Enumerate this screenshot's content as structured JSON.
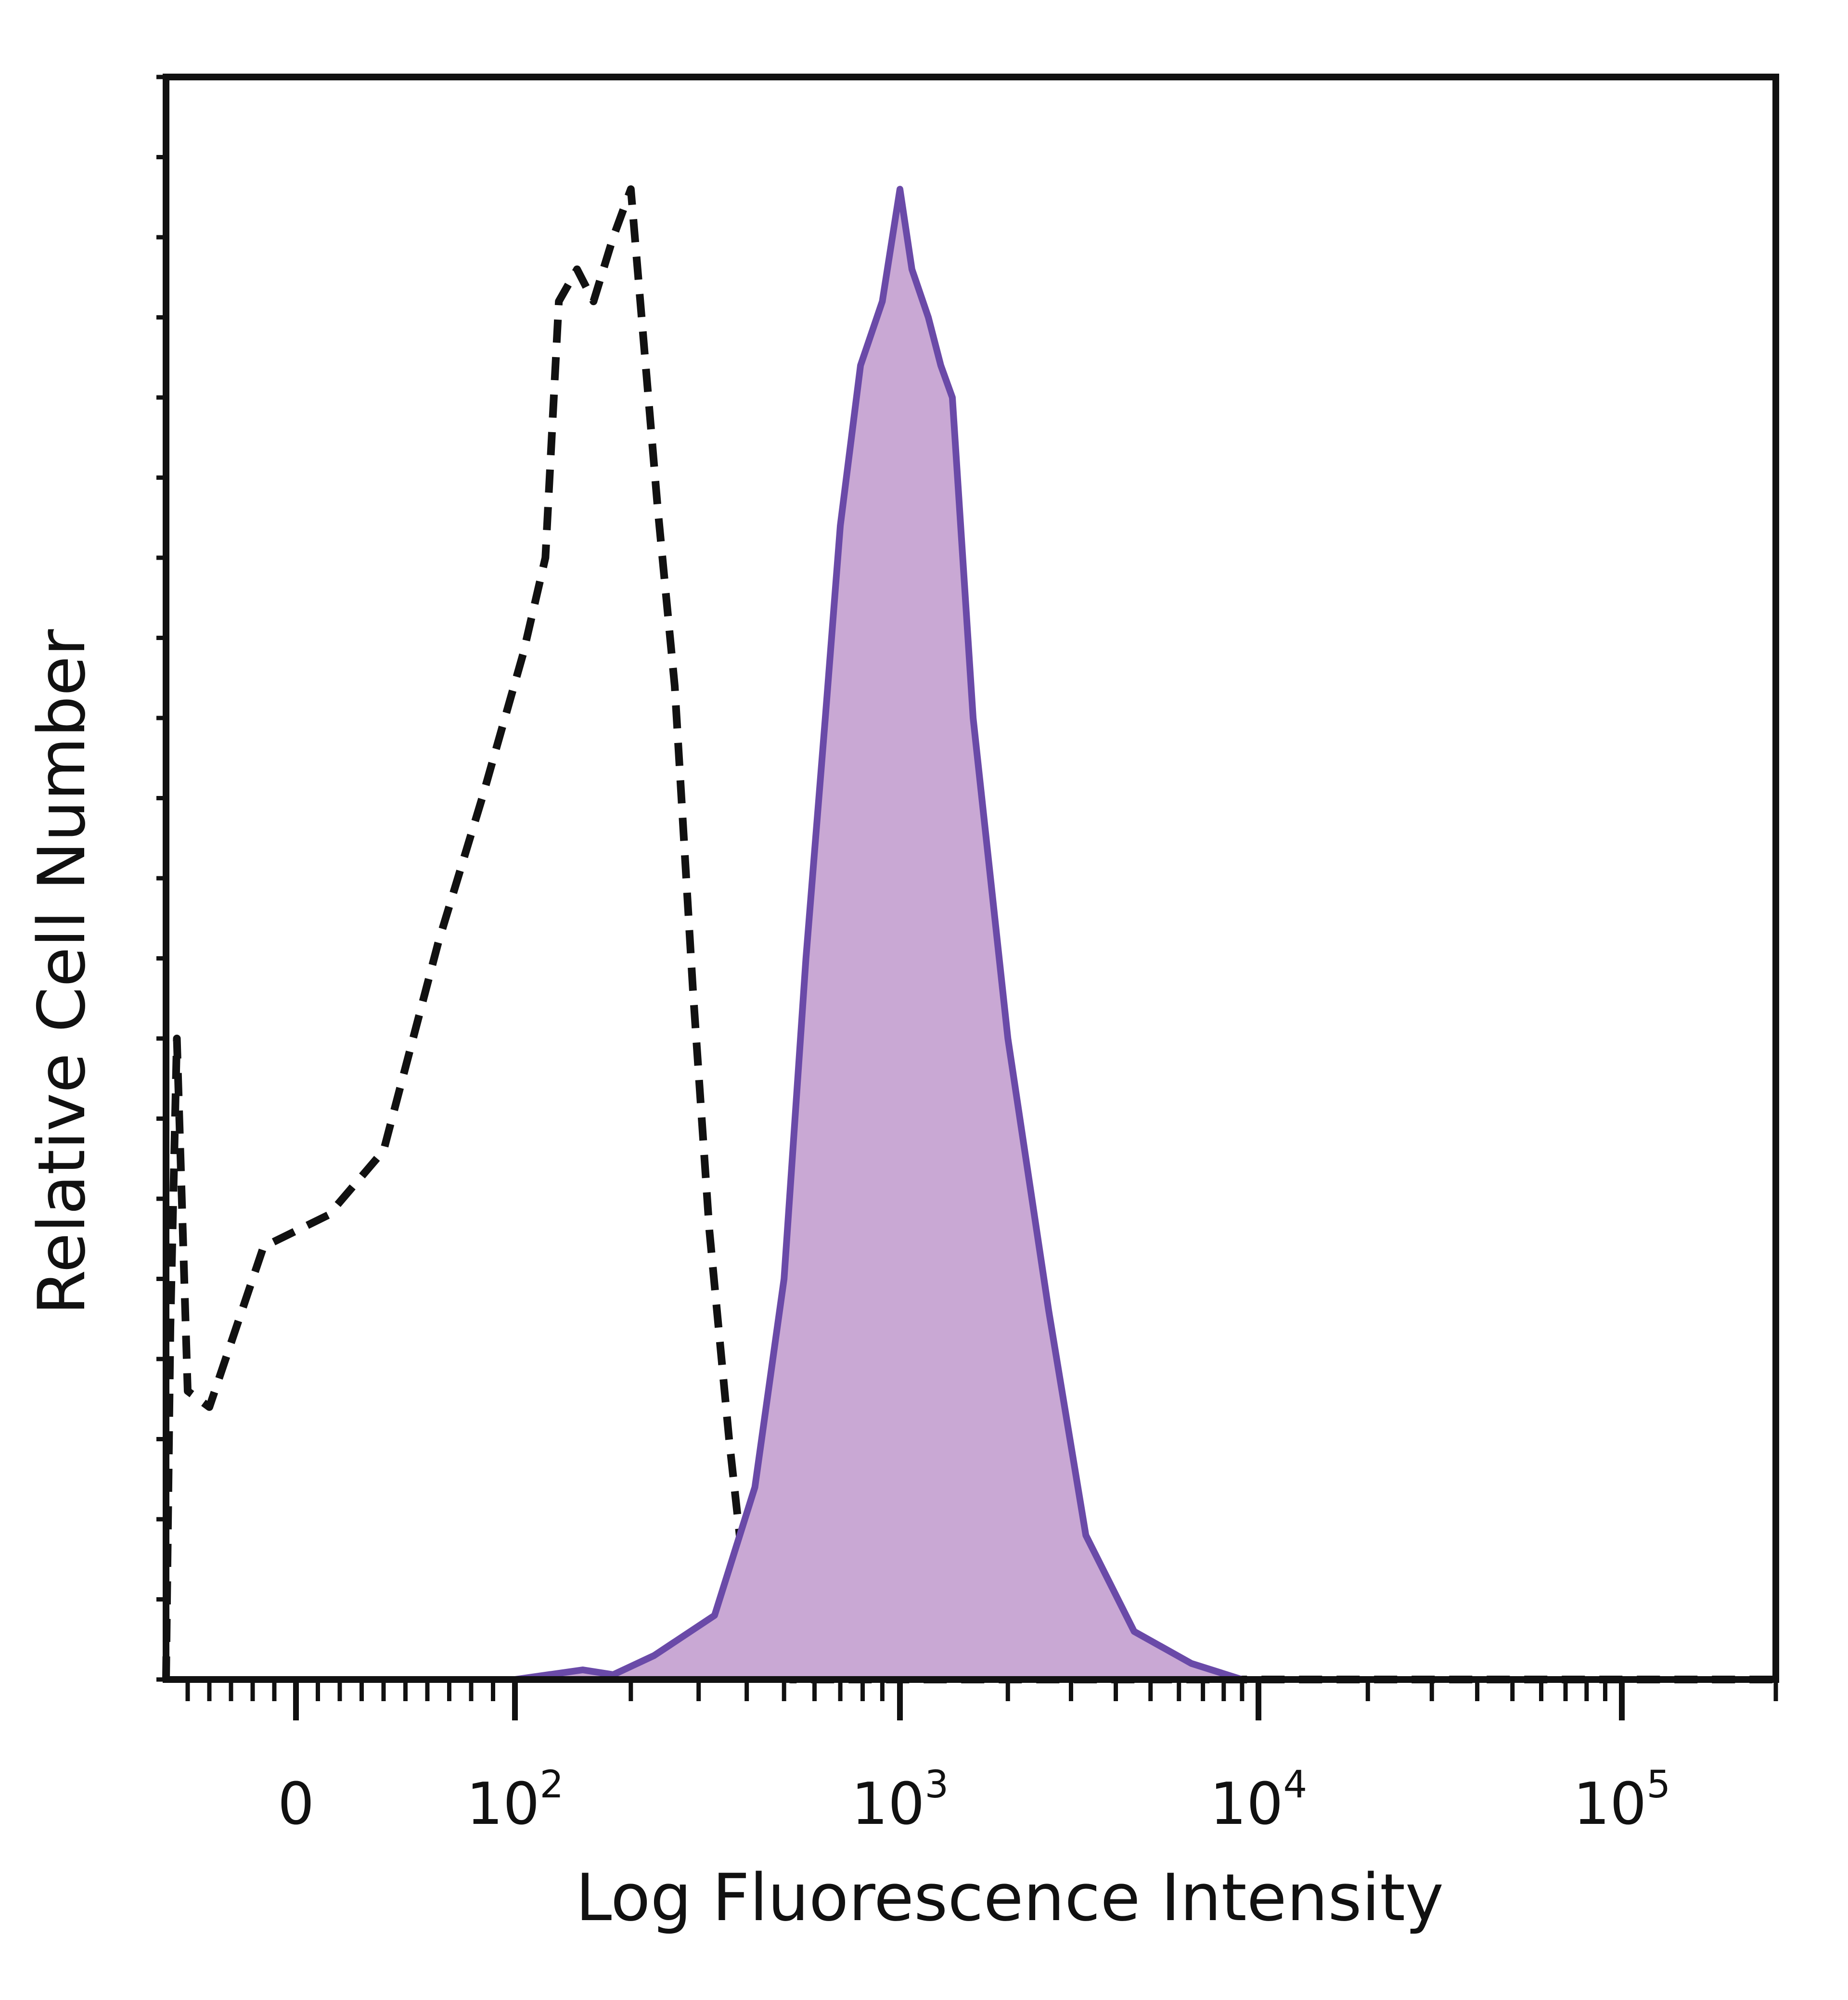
{
  "chart_data": {
    "type": "area",
    "title": "",
    "xlabel": "Log Fluorescence Intensity",
    "ylabel": "Relative Cell Number",
    "x_scale": "biexponential (linear near 0, log above)",
    "xlim": [
      -60,
      200000
    ],
    "ylim": [
      0,
      100
    ],
    "y_ticks_labeled": false,
    "grid": false,
    "legend": "none",
    "x_tick_labels": [
      {
        "value": 0,
        "base": "0",
        "exp": ""
      },
      {
        "value": 100,
        "base": "10",
        "exp": "2"
      },
      {
        "value": 1000,
        "base": "10",
        "exp": "3"
      },
      {
        "value": 10000,
        "base": "10",
        "exp": "4"
      },
      {
        "value": 100000,
        "base": "10",
        "exp": "5"
      }
    ],
    "series": [
      {
        "style": "dashed",
        "color": "#111111",
        "fill": "none",
        "points": [
          [
            -60,
            0
          ],
          [
            -58,
            22
          ],
          [
            -55,
            40
          ],
          [
            -50,
            18
          ],
          [
            -40,
            17
          ],
          [
            -15,
            27
          ],
          [
            15,
            29
          ],
          [
            40,
            33
          ],
          [
            65,
            46
          ],
          [
            85,
            55
          ],
          [
            105,
            64
          ],
          [
            120,
            70
          ],
          [
            130,
            86
          ],
          [
            145,
            88
          ],
          [
            160,
            86
          ],
          [
            180,
            90
          ],
          [
            200,
            93
          ],
          [
            235,
            73
          ],
          [
            260,
            62
          ],
          [
            290,
            43
          ],
          [
            320,
            28
          ],
          [
            360,
            15
          ],
          [
            400,
            5
          ],
          [
            450,
            1
          ],
          [
            520,
            0
          ],
          [
            1000,
            0
          ],
          [
            100000,
            0
          ],
          [
            200000,
            0
          ]
        ]
      },
      {
        "style": "solid",
        "color": "#6a4aa8",
        "fill": "#c9a8d4",
        "points": [
          [
            -60,
            0
          ],
          [
            100,
            0
          ],
          [
            150,
            0.6
          ],
          [
            180,
            0.3
          ],
          [
            230,
            1.5
          ],
          [
            330,
            4
          ],
          [
            420,
            12
          ],
          [
            500,
            25
          ],
          [
            570,
            45
          ],
          [
            640,
            60
          ],
          [
            700,
            72
          ],
          [
            790,
            82
          ],
          [
            900,
            86
          ],
          [
            1000,
            93
          ],
          [
            1080,
            88
          ],
          [
            1200,
            85
          ],
          [
            1300,
            82
          ],
          [
            1400,
            80
          ],
          [
            1600,
            60
          ],
          [
            2000,
            40
          ],
          [
            2600,
            23
          ],
          [
            3300,
            9
          ],
          [
            4500,
            3
          ],
          [
            6500,
            1
          ],
          [
            9000,
            0
          ],
          [
            200000,
            0
          ]
        ]
      }
    ]
  }
}
